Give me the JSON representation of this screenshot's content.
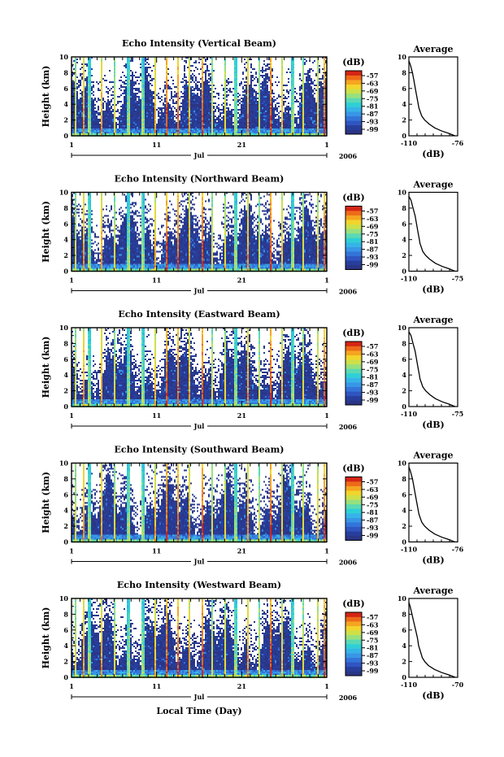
{
  "colors": {
    "scale": [
      "#2a3585",
      "#283e9b",
      "#2f55c0",
      "#3474d9",
      "#3896e6",
      "#35b4e8",
      "#2fcfd6",
      "#5ad9b4",
      "#98e07e",
      "#cde04a",
      "#f2d52c",
      "#f5a520",
      "#ee6a18",
      "#d42514"
    ],
    "background": "#ffffff",
    "line": "#000000"
  },
  "xlabel_bottom": "Local Time (Day)",
  "panels": [
    {
      "title": "Echo Intensity (Vertical Beam)",
      "avg_xticks": [
        "-110",
        "-76"
      ]
    },
    {
      "title": "Echo Intensity (Northward Beam)",
      "avg_xticks": [
        "-110",
        "-75"
      ]
    },
    {
      "title": "Echo Intensity (Eastward Beam)",
      "avg_xticks": [
        "-110",
        "-75"
      ]
    },
    {
      "title": "Echo Intensity (Southward Beam)",
      "avg_xticks": [
        "-110",
        "-76"
      ]
    },
    {
      "title": "Echo Intensity (Westward Beam)",
      "avg_xticks": [
        "-110",
        "-70"
      ]
    }
  ],
  "chart_data": {
    "type": "heatmap",
    "x_ticks": [
      "1",
      "11",
      "21",
      "1"
    ],
    "month_label": "Jul",
    "year_label": "2006",
    "y_label": "Height (km)",
    "y_ticks": [
      "0",
      "2",
      "4",
      "6",
      "8",
      "10"
    ],
    "y_range_km": [
      0,
      10
    ],
    "colorbar": {
      "title": "(dB)",
      "tick_labels": [
        "-57",
        "-63",
        "-69",
        "-75",
        "-81",
        "-87",
        "-93",
        "-99"
      ]
    },
    "average": {
      "title": "Average",
      "xlabel": "(dB)",
      "y_ticks": [
        "0",
        "2",
        "4",
        "6",
        "8",
        "10"
      ],
      "profiles": [
        {
          "x_range": [
            -110,
            -76
          ],
          "height_km": [
            0.0,
            0.3,
            0.6,
            1.0,
            1.5,
            2.0,
            2.5,
            3.0,
            3.5,
            4.0,
            5.0,
            6.0,
            7.0,
            8.0,
            9.0,
            9.5
          ],
          "db": [
            -78,
            -82,
            -87,
            -92,
            -96,
            -99,
            -101,
            -102,
            -103,
            -103.5,
            -104.5,
            -105.5,
            -106.5,
            -107.5,
            -109,
            -110
          ]
        },
        {
          "x_range": [
            -110,
            -75
          ],
          "height_km": [
            0.0,
            0.3,
            0.6,
            1.0,
            1.5,
            2.0,
            2.5,
            3.0,
            3.5,
            4.0,
            5.0,
            6.0,
            7.0,
            8.0,
            9.0,
            9.5
          ],
          "db": [
            -77,
            -81,
            -86,
            -91,
            -95,
            -98,
            -100,
            -101,
            -102,
            -102.5,
            -103.5,
            -104.5,
            -105.5,
            -107,
            -108.5,
            -110
          ]
        },
        {
          "x_range": [
            -110,
            -75
          ],
          "height_km": [
            0.0,
            0.3,
            0.6,
            1.0,
            1.5,
            2.0,
            2.5,
            3.0,
            3.5,
            4.0,
            5.0,
            6.0,
            7.0,
            8.0,
            9.0,
            9.5
          ],
          "db": [
            -77,
            -81,
            -86,
            -91,
            -95,
            -98,
            -100,
            -101,
            -102,
            -102.5,
            -103.5,
            -104.5,
            -105.5,
            -107,
            -108.5,
            -110
          ]
        },
        {
          "x_range": [
            -110,
            -76
          ],
          "height_km": [
            0.0,
            0.3,
            0.6,
            1.0,
            1.5,
            2.0,
            2.5,
            3.0,
            3.5,
            4.0,
            5.0,
            6.0,
            7.0,
            8.0,
            9.0,
            9.5
          ],
          "db": [
            -78,
            -82,
            -87,
            -92,
            -96,
            -99,
            -101,
            -102,
            -103,
            -103.5,
            -104.5,
            -105.5,
            -106.5,
            -107.5,
            -109,
            -110
          ]
        },
        {
          "x_range": [
            -110,
            -70
          ],
          "height_km": [
            0.0,
            0.3,
            0.6,
            1.0,
            1.5,
            2.0,
            2.5,
            3.0,
            3.5,
            4.0,
            5.0,
            6.0,
            7.0,
            8.0,
            9.0,
            9.5
          ],
          "db": [
            -72,
            -77,
            -83,
            -89,
            -94,
            -97,
            -99,
            -100,
            -101,
            -102,
            -103,
            -104.5,
            -106,
            -107.5,
            -109,
            -110
          ]
        }
      ]
    }
  }
}
